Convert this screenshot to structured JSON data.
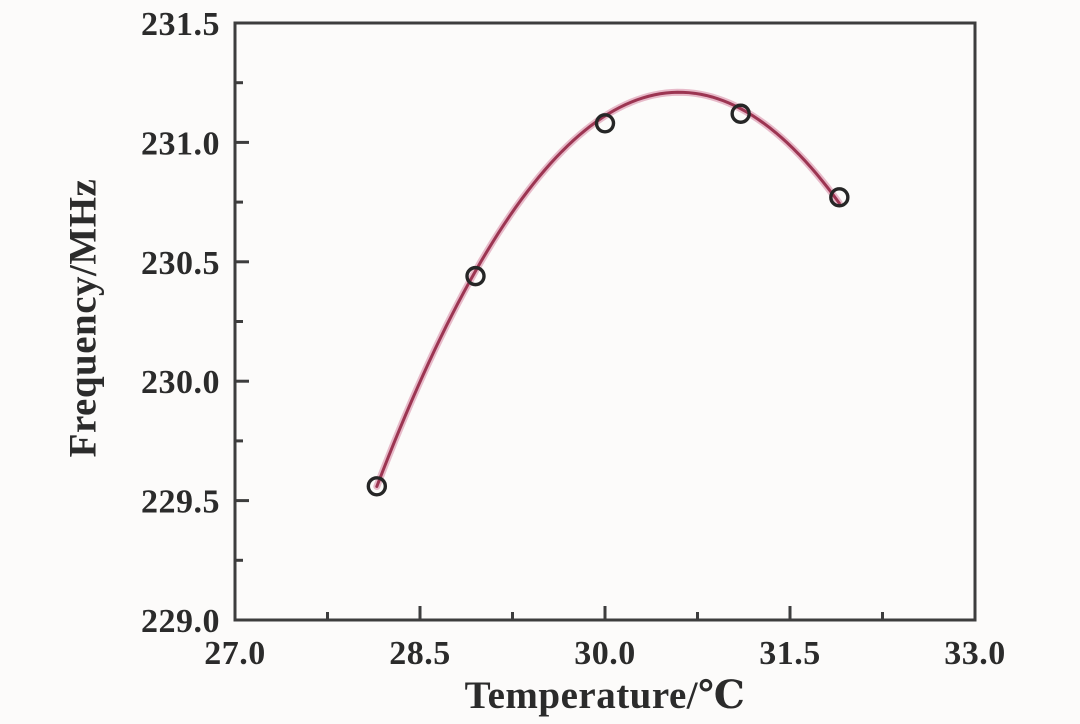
{
  "chart_data": {
    "type": "scatter",
    "title": "",
    "xlabel": "Temperature/℃",
    "ylabel": "Frequency/MHz",
    "xlim": [
      27.0,
      33.0
    ],
    "ylim": [
      229.0,
      231.5
    ],
    "x_major_ticks": [
      27.0,
      28.5,
      30.0,
      31.5,
      33.0
    ],
    "x_minor_ticks": [
      27.75,
      29.25,
      30.75,
      32.25
    ],
    "y_major_ticks": [
      229.0,
      229.5,
      230.0,
      230.5,
      231.0,
      231.5
    ],
    "y_minor_ticks": [
      229.25,
      229.75,
      230.25,
      230.75,
      231.25
    ],
    "tick_decimals": 1,
    "grid": false,
    "legend": "none",
    "series": [
      {
        "name": "measured-points",
        "marker": "open-circle",
        "x": [
          28.15,
          28.95,
          30.0,
          31.1,
          31.9
        ],
        "y": [
          229.56,
          230.44,
          231.08,
          231.12,
          230.77
        ]
      }
    ],
    "fit_curve": {
      "name": "parabolic-fit",
      "model": "y = vertex_y + a*(x - vertex_x)^2",
      "vertex_x": 30.6,
      "vertex_y": 231.21,
      "a": -0.275,
      "x_start": 28.15,
      "x_end": 31.9
    },
    "colors": {
      "curve_core": "#9c3552",
      "curve_glow": "#e3aec0",
      "marker_stroke": "#262626",
      "axis": "#3d3d3d",
      "text": "#2b2b2b",
      "background": "#fcfbfa"
    }
  }
}
